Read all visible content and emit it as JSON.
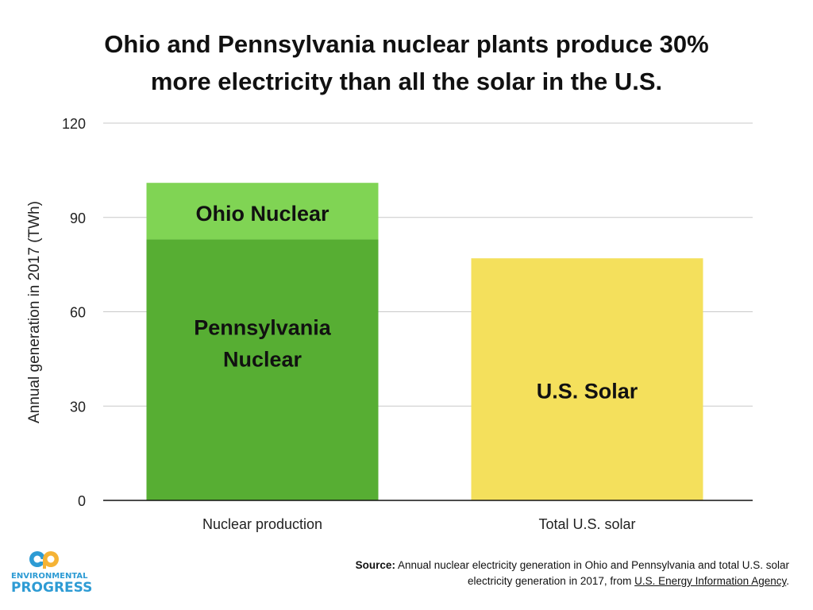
{
  "chart_data": {
    "type": "bar",
    "title": "Ohio and Pennsylvania nuclear plants produce 30% more electricity than all the solar in the U.S.",
    "title_lines": [
      "Ohio and Pennsylvania nuclear plants produce 30%",
      "more electricity than all the solar in the U.S."
    ],
    "ylabel": "Annual generation in 2017 (TWh)",
    "xlabel": "",
    "ylim": [
      0,
      120
    ],
    "yticks": [
      0,
      30,
      60,
      90,
      120
    ],
    "grid": true,
    "stacked": true,
    "categories": [
      "Nuclear production",
      "Total U.S. solar"
    ],
    "series": [
      {
        "name": "Pennsylvania Nuclear",
        "values": [
          83,
          0
        ],
        "color": "#57ae33"
      },
      {
        "name": "Ohio Nuclear",
        "values": [
          18,
          0
        ],
        "color": "#80d454"
      },
      {
        "name": "U.S. Solar",
        "values": [
          0,
          77
        ],
        "color": "#f4e05c"
      }
    ],
    "bar_labels": [
      {
        "lines": [
          "Ohio Nuclear"
        ],
        "category": 0,
        "series": 1
      },
      {
        "lines": [
          "Pennsylvania",
          "Nuclear"
        ],
        "category": 0,
        "series": 0
      },
      {
        "lines": [
          "U.S. Solar"
        ],
        "category": 1,
        "series": 2
      }
    ]
  },
  "logo": {
    "mark": "ep",
    "line1": "ENVIRONMENTAL",
    "line2": "PROGRESS",
    "color": "#2d9bd4"
  },
  "source": {
    "label": "Source:",
    "text": "Annual nuclear electricity generation in Ohio and Pennsylvania and total U.S. solar electricity generation in 2017, from",
    "link_text": "U.S. Energy Information Agency",
    "end": "."
  }
}
